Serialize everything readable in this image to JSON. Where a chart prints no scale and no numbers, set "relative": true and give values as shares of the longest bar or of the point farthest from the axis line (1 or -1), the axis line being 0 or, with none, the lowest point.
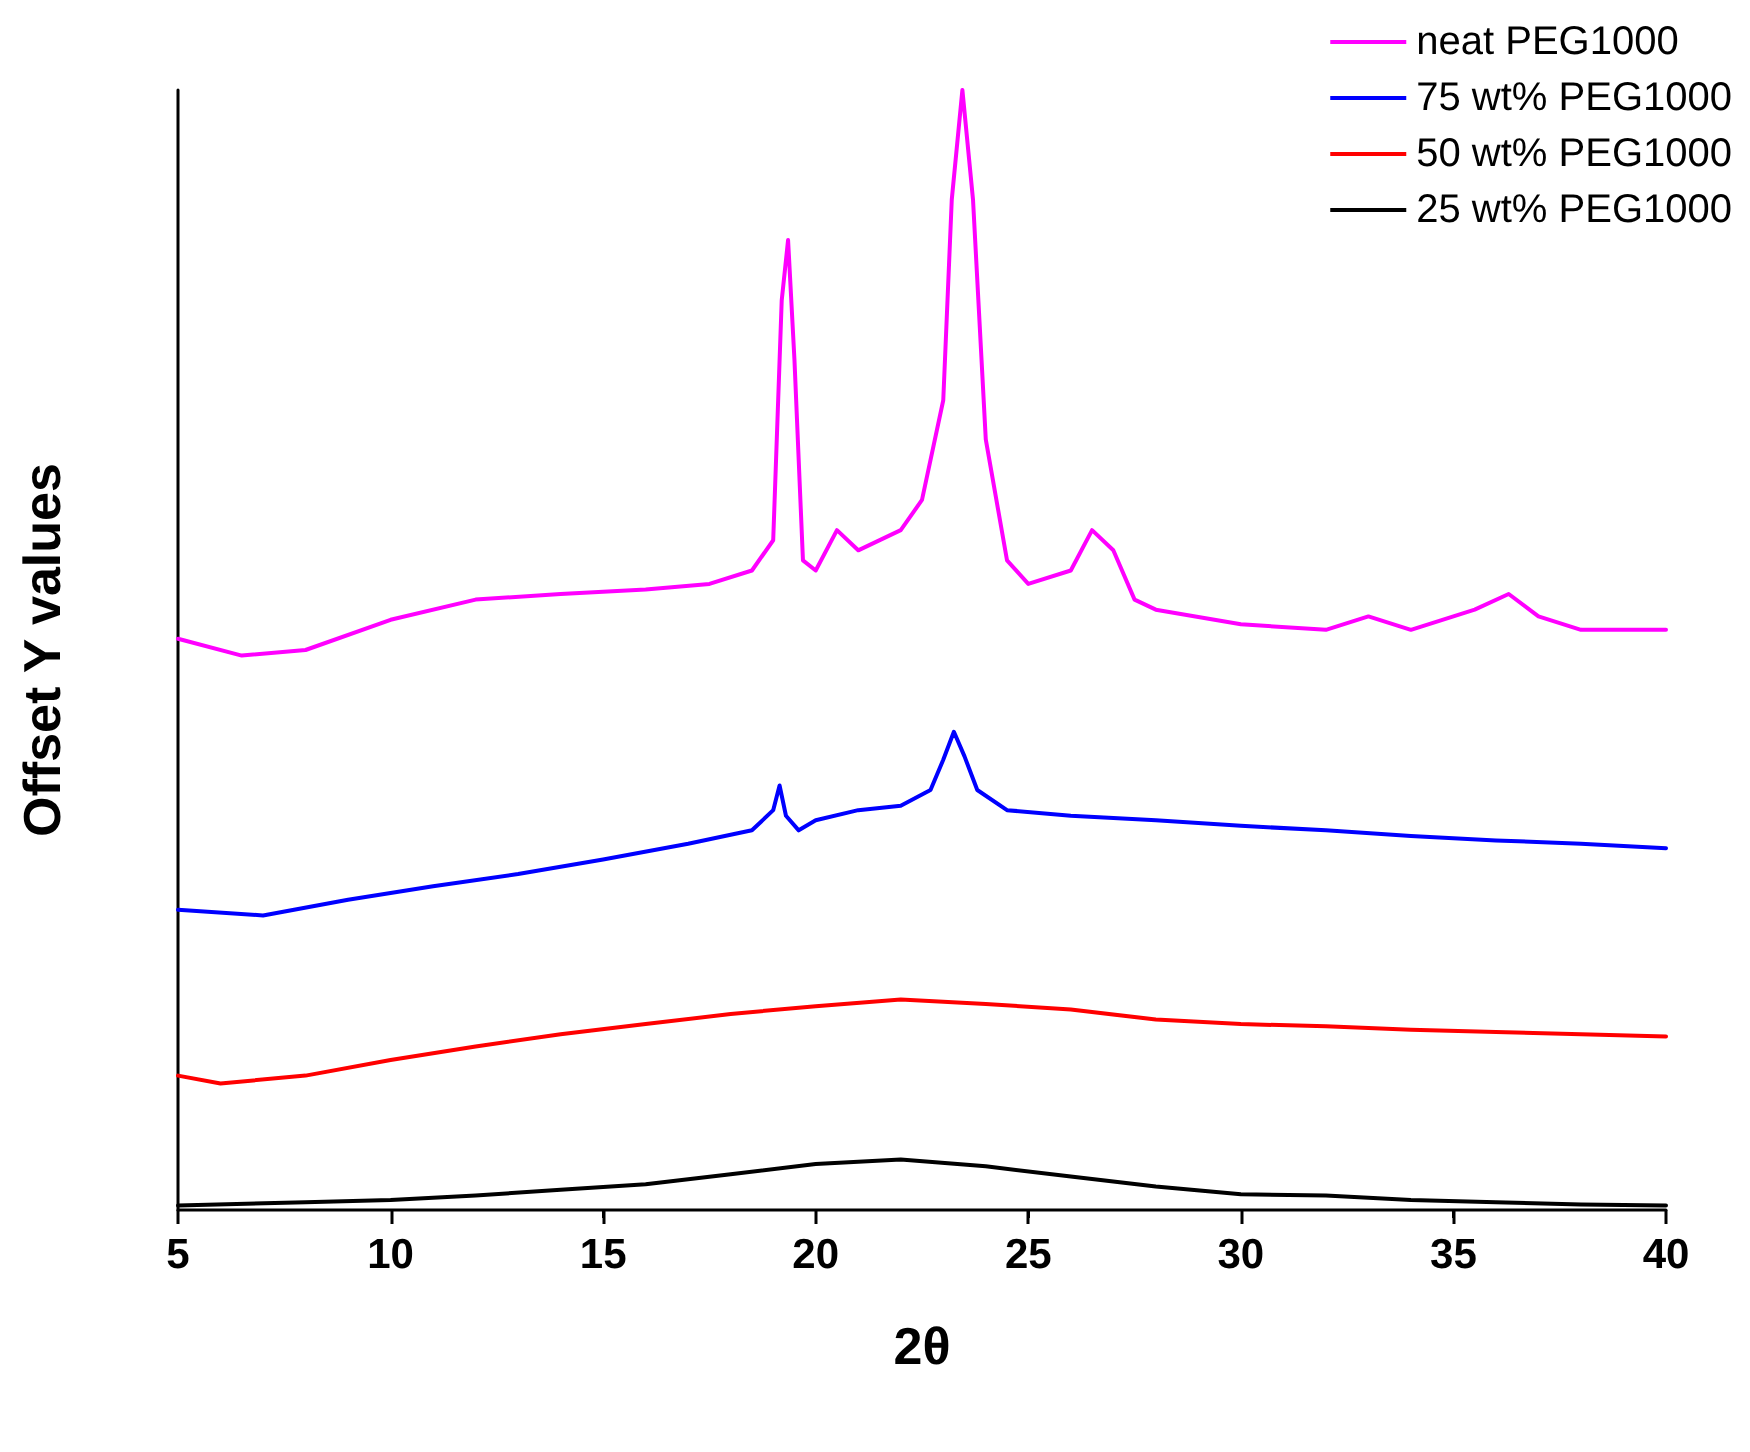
{
  "chart_data": {
    "type": "line",
    "xlabel": "2θ",
    "ylabel": "Offset Y values",
    "relative": true,
    "xlim": [
      5,
      40
    ],
    "xticks": [
      5,
      10,
      15,
      20,
      25,
      30,
      35,
      40
    ],
    "grid": false,
    "legend": "top right",
    "marker": "none",
    "line_style": "solid",
    "series": [
      {
        "name": "neat PEG1000",
        "color": "#ff00ff",
        "x": [
          5,
          6.5,
          8,
          10,
          12,
          14,
          16,
          17.5,
          18.5,
          19,
          19.2,
          19.35,
          19.5,
          19.7,
          20,
          20.5,
          21,
          22,
          22.5,
          23,
          23.2,
          23.45,
          23.7,
          24,
          24.5,
          25,
          26,
          26.5,
          27,
          27.5,
          28,
          30,
          32,
          33,
          34,
          35.5,
          36.3,
          37,
          38,
          40
        ],
        "values": [
          0.51,
          0.495,
          0.5,
          0.527,
          0.545,
          0.55,
          0.554,
          0.559,
          0.571,
          0.598,
          0.812,
          0.866,
          0.759,
          0.58,
          0.571,
          0.607,
          0.589,
          0.607,
          0.634,
          0.723,
          0.902,
          1,
          0.902,
          0.688,
          0.58,
          0.559,
          0.571,
          0.607,
          0.589,
          0.545,
          0.536,
          0.523,
          0.518,
          0.53,
          0.518,
          0.536,
          0.55,
          0.53,
          0.518,
          0.518
        ]
      },
      {
        "name": "75 wt% PEG1000",
        "color": "#0000ff",
        "x": [
          5,
          7,
          9,
          11,
          13,
          15,
          17,
          18.5,
          19,
          19.15,
          19.3,
          19.6,
          20,
          21,
          22,
          22.7,
          23,
          23.25,
          23.5,
          23.8,
          24.5,
          26,
          28,
          30,
          32,
          34,
          36,
          38,
          40
        ],
        "values": [
          0.268,
          0.263,
          0.277,
          0.289,
          0.3,
          0.313,
          0.327,
          0.339,
          0.357,
          0.379,
          0.352,
          0.339,
          0.348,
          0.357,
          0.361,
          0.375,
          0.402,
          0.427,
          0.405,
          0.375,
          0.357,
          0.352,
          0.348,
          0.343,
          0.339,
          0.334,
          0.33,
          0.327,
          0.323
        ]
      },
      {
        "name": "50 wt% PEG1000",
        "color": "#ff0000",
        "x": [
          5,
          6,
          8,
          10,
          12,
          14,
          16,
          18,
          20,
          22,
          24,
          26,
          28,
          30,
          32,
          34,
          36,
          38,
          40
        ],
        "values": [
          0.12,
          0.113,
          0.12,
          0.134,
          0.146,
          0.157,
          0.166,
          0.175,
          0.182,
          0.188,
          0.184,
          0.179,
          0.17,
          0.166,
          0.164,
          0.161,
          0.159,
          0.157,
          0.155
        ]
      },
      {
        "name": "25 wt% PEG1000",
        "color": "#000000",
        "x": [
          5,
          8,
          10,
          12,
          14,
          16,
          18,
          20,
          22,
          24,
          26,
          28,
          30,
          32,
          34,
          36,
          38,
          40
        ],
        "values": [
          0.004,
          0.007,
          0.009,
          0.013,
          0.018,
          0.023,
          0.032,
          0.041,
          0.045,
          0.039,
          0.03,
          0.021,
          0.014,
          0.013,
          0.009,
          0.007,
          0.005,
          0.004
        ]
      }
    ]
  }
}
